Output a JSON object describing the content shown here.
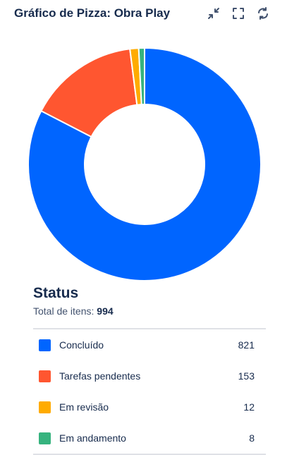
{
  "header": {
    "title": "Gráfico de Pizza: Obra Play",
    "icons": [
      "collapse-icon",
      "fullscreen-icon",
      "refresh-icon"
    ]
  },
  "summary": {
    "heading": "Status",
    "total_label": "Total de itens:",
    "total_value": "994"
  },
  "chart_data": {
    "type": "pie",
    "donut": true,
    "title": "Status",
    "categories": [
      "Concluído",
      "Tarefas pendentes",
      "Em revisão",
      "Em andamento"
    ],
    "values": [
      821,
      153,
      12,
      8
    ],
    "colors": [
      "#0065ff",
      "#ff5630",
      "#ffab00",
      "#36b37e"
    ],
    "total": 994
  },
  "legend": {
    "items": [
      {
        "label": "Concluído",
        "value": "821",
        "color": "#0065ff"
      },
      {
        "label": "Tarefas pendentes",
        "value": "153",
        "color": "#ff5630"
      },
      {
        "label": "Em revisão",
        "value": "12",
        "color": "#ffab00"
      },
      {
        "label": "Em andamento",
        "value": "8",
        "color": "#36b37e"
      }
    ]
  }
}
